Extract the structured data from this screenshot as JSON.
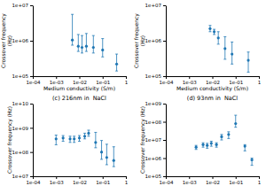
{
  "chart_data": [
    {
      "type": "scatter",
      "log": true,
      "xlabel": "Medium conductivity (S/m)",
      "ylabel": "Crossover frequency\n(Hz)",
      "x": [
        0.005,
        0.009,
        0.013,
        0.02,
        0.04,
        0.1,
        0.4
      ],
      "values": [
        1050000.0,
        700000.0,
        650000.0,
        700000.0,
        650000.0,
        550000.0,
        220000.0
      ],
      "error_low": [
        300000.0,
        200000.0,
        200000.0,
        200000.0,
        200000.0,
        200000.0,
        80000.0
      ],
      "error_high": [
        4500000.0,
        800000.0,
        750000.0,
        900000.0,
        750000.0,
        600000.0,
        200000.0
      ],
      "xlim": [
        0.0001,
        1
      ],
      "ylim": [
        100000.0,
        10000000.0
      ],
      "xticks": [
        {
          "value": 0.0001,
          "label": "1e-04"
        },
        {
          "value": 0.001,
          "label": "1e-03"
        },
        {
          "value": 0.01,
          "label": "1e-02"
        },
        {
          "value": 0.1,
          "label": "1e-01"
        },
        1
      ],
      "yticks": [
        {
          "value": 100000.0,
          "label": "1e+05"
        },
        {
          "value": 1000000.0,
          "label": "1e+06"
        },
        {
          "value": 10000000.0,
          "label": "1e+07"
        }
      ]
    },
    {
      "type": "scatter",
      "log": true,
      "xlabel": "Medium conductivity (S/m)",
      "ylabel": "Crossover frequency\n(Hz)",
      "x": [
        0.008,
        0.012,
        0.018,
        0.035,
        0.07,
        0.35
      ],
      "values": [
        2200000.0,
        1800000.0,
        1200000.0,
        600000.0,
        420000.0,
        280000.0
      ],
      "error_low": [
        400000.0,
        300000.0,
        400000.0,
        300000.0,
        200000.0,
        150000.0
      ],
      "error_high": [
        500000.0,
        300000.0,
        600000.0,
        700000.0,
        500000.0,
        200000.0
      ],
      "xlim": [
        0.0001,
        1
      ],
      "ylim": [
        100000.0,
        10000000.0
      ],
      "xticks": [
        {
          "value": 0.0001,
          "label": "1e-04"
        },
        {
          "value": 0.001,
          "label": "1e-03"
        },
        {
          "value": 0.01,
          "label": "1e-02"
        },
        {
          "value": 0.1,
          "label": "1e-01"
        },
        1
      ],
      "yticks": [
        {
          "value": 100000.0,
          "label": "1e+05"
        },
        {
          "value": 1000000.0,
          "label": "1e+06"
        },
        {
          "value": 10000000.0,
          "label": "1e+07"
        }
      ]
    },
    {
      "type": "scatter",
      "log": true,
      "title": "(c) 216nm in  NaCl",
      "ylabel": "Crossover frequency (Hz)",
      "x": [
        0.001,
        0.002,
        0.004,
        0.006,
        0.01,
        0.017,
        0.025,
        0.05,
        0.09,
        0.15,
        0.3
      ],
      "values": [
        350000000.0,
        380000000.0,
        350000000.0,
        350000000.0,
        380000000.0,
        450000000.0,
        600000000.0,
        250000000.0,
        100000000.0,
        60000000.0,
        45000000.0
      ],
      "error_low": [
        150000000.0,
        100000000.0,
        100000000.0,
        100000000.0,
        100000000.0,
        100000000.0,
        150000000.0,
        100000000.0,
        50000000.0,
        30000000.0,
        20000000.0
      ],
      "error_high": [
        150000000.0,
        100000000.0,
        100000000.0,
        100000000.0,
        100000000.0,
        150000000.0,
        200000000.0,
        400000000.0,
        200000000.0,
        150000000.0,
        120000000.0
      ],
      "xlim": [
        0.0001,
        1
      ],
      "ylim": [
        10000000.0,
        10000000000.0
      ],
      "xticks": [
        {
          "value": 0.0001,
          "label": "1e-04"
        },
        {
          "value": 0.001,
          "label": "1e-03"
        },
        {
          "value": 0.01,
          "label": "1e-02"
        },
        {
          "value": 0.1,
          "label": "1e-01"
        },
        1
      ],
      "yticks": [
        {
          "value": 10000000.0,
          "label": "1e+07"
        },
        {
          "value": 100000000.0,
          "label": "1e+08"
        },
        {
          "value": 1000000000.0,
          "label": "1e+09"
        },
        {
          "value": 10000000000.0,
          "label": "1e+10"
        }
      ]
    },
    {
      "type": "scatter",
      "log": true,
      "title": "(d) 93nm in  NaCl",
      "ylabel": "Crossover frequency (Hz)",
      "x": [
        0.002,
        0.004,
        0.006,
        0.009,
        0.015,
        0.025,
        0.05,
        0.1,
        0.25,
        0.5
      ],
      "values": [
        4000000.0,
        5500000.0,
        5000000.0,
        6500000.0,
        5500000.0,
        15000000.0,
        20000000.0,
        80000000.0,
        4500000.0,
        800000.0
      ],
      "error_low": [
        1000000.0,
        1500000.0,
        1500000.0,
        2000000.0,
        1500000.0,
        5000000.0,
        8000000.0,
        30000000.0,
        2000000.0,
        400000.0
      ],
      "error_high": [
        1000000.0,
        1500000.0,
        1500000.0,
        2000000.0,
        1500000.0,
        5000000.0,
        8000000.0,
        150000000.0,
        1000000.0,
        200000.0
      ],
      "xlim": [
        0.0001,
        1
      ],
      "ylim": [
        100000.0,
        1000000000.0
      ],
      "xticks": [
        {
          "value": 0.0001,
          "label": "1e-04"
        },
        {
          "value": 0.001,
          "label": "1e-03"
        },
        {
          "value": 0.01,
          "label": "1e-02"
        },
        {
          "value": 0.1,
          "label": "1e-01"
        },
        1
      ],
      "yticks": [
        {
          "value": 100000.0,
          "label": "1e+05"
        },
        {
          "value": 1000000.0,
          "label": "1e+06"
        },
        {
          "value": 10000000.0,
          "label": "1e+07"
        },
        {
          "value": 100000000.0,
          "label": "1e+08"
        },
        {
          "value": 1000000000.0,
          "label": "1e+09"
        }
      ]
    }
  ]
}
